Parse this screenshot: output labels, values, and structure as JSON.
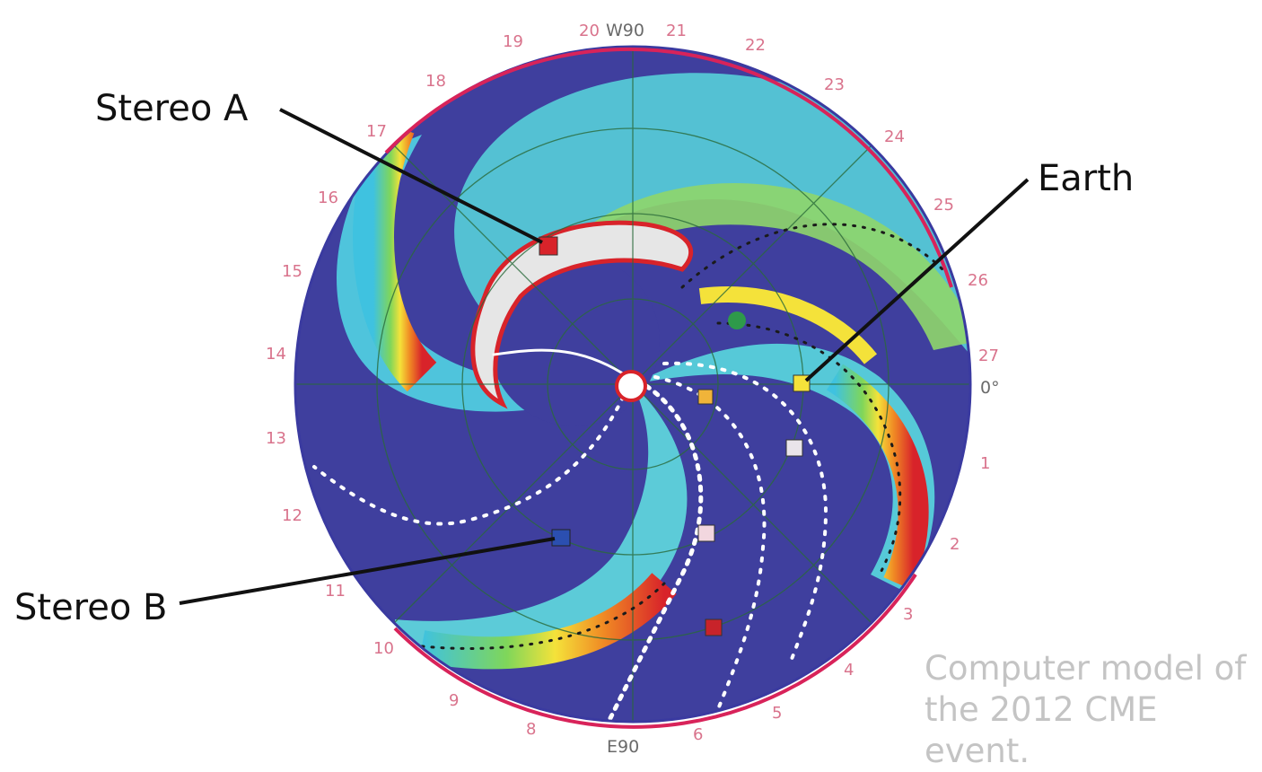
{
  "annotations": {
    "stereo_a": "Stereo A",
    "stereo_b": "Stereo B",
    "earth": "Earth"
  },
  "caption": {
    "line1": "Computer model of",
    "line2": "the 2012 CME event."
  },
  "axis_labels": {
    "top": "W90",
    "bottom": "E90",
    "right": "0°"
  },
  "ticks": [
    "19",
    "20",
    "21",
    "22",
    "23",
    "24",
    "25",
    "26",
    "27",
    "1",
    "2",
    "3",
    "4",
    "5",
    "6",
    "8",
    "9",
    "10",
    "11",
    "12",
    "13",
    "14",
    "15",
    "16",
    "17",
    "18"
  ],
  "colors": {
    "stereo_a_marker": "#d8232a",
    "stereo_b_marker": "#2b4fb0",
    "earth_marker": "#f5e23a",
    "disk_background": "#3f3f9e",
    "cme_front": "#d8232a"
  }
}
